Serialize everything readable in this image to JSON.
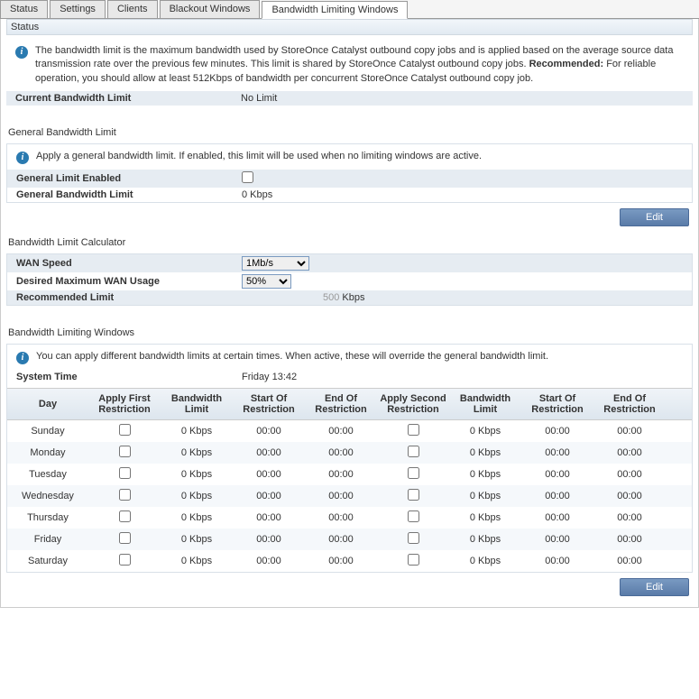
{
  "tabs": {
    "items": [
      {
        "label": "Status",
        "active": false
      },
      {
        "label": "Settings",
        "active": false
      },
      {
        "label": "Clients",
        "active": false
      },
      {
        "label": "Blackout Windows",
        "active": false
      },
      {
        "label": "Bandwidth Limiting Windows",
        "active": true
      }
    ]
  },
  "status": {
    "header": "Status",
    "info_pre": "The bandwidth limit is the maximum bandwidth used by StoreOnce Catalyst outbound copy jobs and is applied based on the average source data transmission rate over the previous few minutes. This limit is shared by StoreOnce Catalyst outbound copy jobs. ",
    "info_bold": "Recommended:",
    "info_post": " For reliable operation, you should allow at least 512Kbps of bandwidth per concurrent StoreOnce Catalyst outbound copy job.",
    "current_label": "Current Bandwidth Limit",
    "current_value": "No Limit"
  },
  "general": {
    "title": "General Bandwidth Limit",
    "info": "Apply a general bandwidth limit. If enabled, this limit will be used when no limiting windows are active.",
    "enabled_label": "General Limit Enabled",
    "limit_label": "General Bandwidth Limit",
    "limit_value": "0 Kbps",
    "edit": "Edit"
  },
  "calculator": {
    "title": "Bandwidth Limit Calculator",
    "wan_label": "WAN Speed",
    "wan_value": "1Mb/s",
    "usage_label": "Desired Maximum WAN Usage",
    "usage_value": "50%",
    "rec_label": "Recommended Limit",
    "rec_value": "500",
    "rec_unit": " Kbps"
  },
  "windows": {
    "title": "Bandwidth Limiting Windows",
    "info": "You can apply different bandwidth limits at certain times. When active, these will override the general bandwidth limit.",
    "systime_label": "System Time",
    "systime_value": "Friday 13:42",
    "headers": {
      "day": "Day",
      "apply1": "Apply First Restriction",
      "limit1": "Bandwidth Limit",
      "start1": "Start Of Restriction",
      "end1": "End Of Restriction",
      "apply2": "Apply Second Restriction",
      "limit2": "Bandwidth Limit",
      "start2": "Start Of Restriction",
      "end2": "End Of Restriction"
    },
    "rows": [
      {
        "day": "Sunday",
        "limit1": "0 Kbps",
        "start1": "00:00",
        "end1": "00:00",
        "limit2": "0 Kbps",
        "start2": "00:00",
        "end2": "00:00"
      },
      {
        "day": "Monday",
        "limit1": "0 Kbps",
        "start1": "00:00",
        "end1": "00:00",
        "limit2": "0 Kbps",
        "start2": "00:00",
        "end2": "00:00"
      },
      {
        "day": "Tuesday",
        "limit1": "0 Kbps",
        "start1": "00:00",
        "end1": "00:00",
        "limit2": "0 Kbps",
        "start2": "00:00",
        "end2": "00:00"
      },
      {
        "day": "Wednesday",
        "limit1": "0 Kbps",
        "start1": "00:00",
        "end1": "00:00",
        "limit2": "0 Kbps",
        "start2": "00:00",
        "end2": "00:00"
      },
      {
        "day": "Thursday",
        "limit1": "0 Kbps",
        "start1": "00:00",
        "end1": "00:00",
        "limit2": "0 Kbps",
        "start2": "00:00",
        "end2": "00:00"
      },
      {
        "day": "Friday",
        "limit1": "0 Kbps",
        "start1": "00:00",
        "end1": "00:00",
        "limit2": "0 Kbps",
        "start2": "00:00",
        "end2": "00:00"
      },
      {
        "day": "Saturday",
        "limit1": "0 Kbps",
        "start1": "00:00",
        "end1": "00:00",
        "limit2": "0 Kbps",
        "start2": "00:00",
        "end2": "00:00"
      }
    ],
    "edit": "Edit"
  }
}
